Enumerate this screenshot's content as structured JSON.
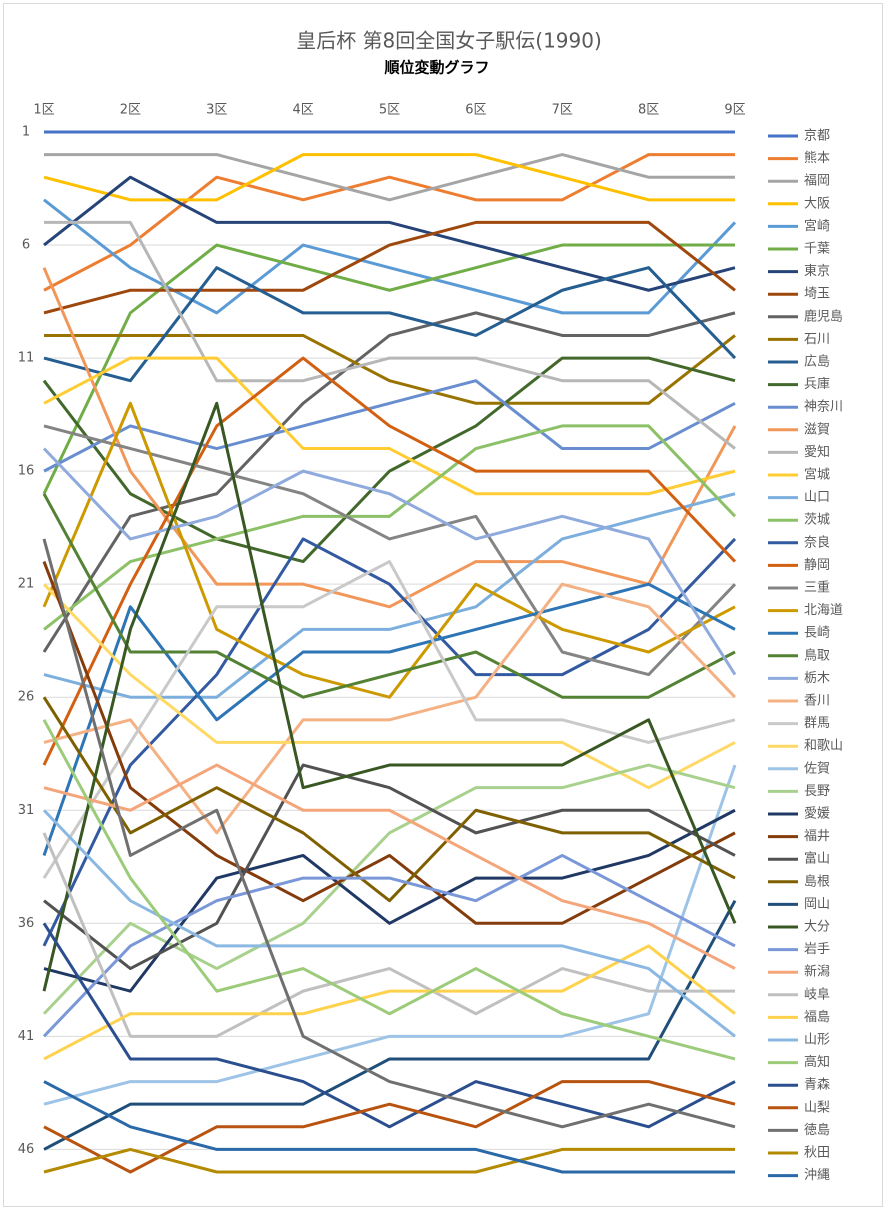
{
  "chart_data": {
    "type": "line",
    "title": "皇后杯 第8回全国女子駅伝(1990)",
    "subtitle": "順位変動グラフ",
    "categories": [
      "1区",
      "2区",
      "3区",
      "4区",
      "5区",
      "6区",
      "7区",
      "8区",
      "9区"
    ],
    "ylim": [
      1,
      47
    ],
    "yticks": [
      1,
      6,
      11,
      16,
      21,
      26,
      31,
      36,
      41,
      46
    ],
    "y_inverted": true,
    "grid": true,
    "legend": "right",
    "series": [
      {
        "name": "京都",
        "color": "#4472C4",
        "values": [
          1,
          1,
          1,
          1,
          1,
          1,
          1,
          1,
          1
        ]
      },
      {
        "name": "熊本",
        "color": "#ED7D31",
        "values": [
          8,
          6,
          3,
          4,
          3,
          4,
          4,
          2,
          2
        ]
      },
      {
        "name": "福岡",
        "color": "#A5A5A5",
        "values": [
          2,
          2,
          2,
          3,
          4,
          3,
          2,
          3,
          3
        ]
      },
      {
        "name": "大阪",
        "color": "#FFC000",
        "values": [
          3,
          4,
          4,
          2,
          2,
          2,
          3,
          4,
          4
        ]
      },
      {
        "name": "宮崎",
        "color": "#5B9BD5",
        "values": [
          4,
          7,
          9,
          6,
          7,
          8,
          9,
          9,
          5
        ]
      },
      {
        "name": "千葉",
        "color": "#70AD47",
        "values": [
          17,
          9,
          6,
          7,
          8,
          7,
          6,
          6,
          6
        ]
      },
      {
        "name": "東京",
        "color": "#264478",
        "values": [
          6,
          3,
          5,
          5,
          5,
          6,
          7,
          8,
          7
        ]
      },
      {
        "name": "埼玉",
        "color": "#9E480E",
        "values": [
          9,
          8,
          8,
          8,
          6,
          5,
          5,
          5,
          8
        ]
      },
      {
        "name": "鹿児島",
        "color": "#636363",
        "values": [
          24,
          18,
          17,
          13,
          10,
          9,
          10,
          10,
          9
        ]
      },
      {
        "name": "石川",
        "color": "#997300",
        "values": [
          10,
          10,
          10,
          10,
          12,
          13,
          13,
          13,
          10
        ]
      },
      {
        "name": "広島",
        "color": "#255E91",
        "values": [
          11,
          12,
          7,
          9,
          9,
          10,
          8,
          7,
          11
        ]
      },
      {
        "name": "兵庫",
        "color": "#43682B",
        "values": [
          12,
          17,
          19,
          20,
          16,
          14,
          11,
          11,
          12
        ]
      },
      {
        "name": "神奈川",
        "color": "#698ED0",
        "values": [
          16,
          14,
          15,
          14,
          13,
          12,
          15,
          15,
          13
        ]
      },
      {
        "name": "滋賀",
        "color": "#F1975A",
        "values": [
          7,
          16,
          21,
          21,
          22,
          20,
          20,
          21,
          14
        ]
      },
      {
        "name": "愛知",
        "color": "#B7B7B7",
        "values": [
          5,
          5,
          12,
          12,
          11,
          11,
          12,
          12,
          15
        ]
      },
      {
        "name": "宮城",
        "color": "#FFCD33",
        "values": [
          13,
          11,
          11,
          15,
          15,
          17,
          17,
          17,
          16
        ]
      },
      {
        "name": "山口",
        "color": "#7CAFDD",
        "values": [
          25,
          26,
          26,
          23,
          23,
          22,
          19,
          18,
          17
        ]
      },
      {
        "name": "茨城",
        "color": "#8CC168",
        "values": [
          23,
          20,
          19,
          18,
          18,
          15,
          14,
          14,
          18
        ]
      },
      {
        "name": "奈良",
        "color": "#335AA1",
        "values": [
          37,
          29,
          25,
          19,
          21,
          25,
          25,
          23,
          19
        ]
      },
      {
        "name": "静岡",
        "color": "#D26012",
        "values": [
          29,
          21,
          14,
          11,
          14,
          16,
          16,
          16,
          20
        ]
      },
      {
        "name": "三重",
        "color": "#848484",
        "values": [
          14,
          15,
          16,
          17,
          19,
          18,
          24,
          25,
          21
        ]
      },
      {
        "name": "北海道",
        "color": "#CC9A00",
        "values": [
          22,
          13,
          23,
          25,
          26,
          21,
          23,
          24,
          22
        ]
      },
      {
        "name": "長崎",
        "color": "#2E75B6",
        "values": [
          33,
          22,
          27,
          24,
          24,
          23,
          22,
          21,
          23
        ]
      },
      {
        "name": "鳥取",
        "color": "#548235",
        "values": [
          17,
          24,
          24,
          26,
          25,
          24,
          26,
          26,
          24
        ]
      },
      {
        "name": "栃木",
        "color": "#8FAADC",
        "values": [
          15,
          19,
          18,
          16,
          17,
          19,
          18,
          19,
          25
        ]
      },
      {
        "name": "香川",
        "color": "#F4B183",
        "values": [
          28,
          27,
          32,
          27,
          27,
          26,
          21,
          22,
          26
        ]
      },
      {
        "name": "群馬",
        "color": "#C9C9C9",
        "values": [
          34,
          28,
          22,
          22,
          20,
          27,
          27,
          28,
          27
        ]
      },
      {
        "name": "和歌山",
        "color": "#FFD966",
        "values": [
          21,
          25,
          28,
          28,
          28,
          28,
          28,
          30,
          28
        ]
      },
      {
        "name": "佐賀",
        "color": "#9DC3E6",
        "values": [
          44,
          43,
          43,
          42,
          41,
          41,
          41,
          40,
          29
        ]
      },
      {
        "name": "長野",
        "color": "#A9D18E",
        "values": [
          40,
          36,
          38,
          36,
          32,
          30,
          30,
          29,
          30
        ]
      },
      {
        "name": "愛媛",
        "color": "#203864",
        "values": [
          38,
          39,
          34,
          33,
          36,
          34,
          34,
          33,
          31
        ]
      },
      {
        "name": "福井",
        "color": "#843C0C",
        "values": [
          20,
          30,
          33,
          35,
          33,
          36,
          36,
          34,
          32
        ]
      },
      {
        "name": "富山",
        "color": "#525252",
        "values": [
          35,
          38,
          36,
          29,
          30,
          32,
          31,
          31,
          33
        ]
      },
      {
        "name": "島根",
        "color": "#7F6000",
        "values": [
          26,
          32,
          30,
          32,
          35,
          31,
          32,
          32,
          34
        ]
      },
      {
        "name": "岡山",
        "color": "#1F4E79",
        "values": [
          46,
          44,
          44,
          44,
          42,
          42,
          42,
          42,
          35
        ]
      },
      {
        "name": "大分",
        "color": "#385723",
        "values": [
          39,
          23,
          13,
          30,
          29,
          29,
          29,
          27,
          36
        ]
      },
      {
        "name": "岩手",
        "color": "#7A97D8",
        "values": [
          41,
          37,
          35,
          34,
          34,
          35,
          33,
          35,
          37
        ]
      },
      {
        "name": "新潟",
        "color": "#F4A57A",
        "values": [
          30,
          31,
          29,
          31,
          31,
          33,
          35,
          36,
          38
        ]
      },
      {
        "name": "岐阜",
        "color": "#C0C0C0",
        "values": [
          32,
          41,
          41,
          39,
          38,
          40,
          38,
          39,
          39
        ]
      },
      {
        "name": "福島",
        "color": "#FFD24D",
        "values": [
          42,
          40,
          40,
          40,
          39,
          39,
          39,
          37,
          40
        ]
      },
      {
        "name": "山形",
        "color": "#8BB8E2",
        "values": [
          31,
          35,
          37,
          37,
          37,
          37,
          37,
          38,
          41
        ]
      },
      {
        "name": "高知",
        "color": "#9CCB7A",
        "values": [
          27,
          34,
          39,
          38,
          40,
          38,
          40,
          41,
          42
        ]
      },
      {
        "name": "青森",
        "color": "#2B4E8E",
        "values": [
          36,
          42,
          42,
          43,
          45,
          43,
          44,
          45,
          43
        ]
      },
      {
        "name": "山梨",
        "color": "#B85410",
        "values": [
          45,
          47,
          45,
          45,
          44,
          45,
          43,
          43,
          44
        ]
      },
      {
        "name": "徳島",
        "color": "#707070",
        "values": [
          19,
          33,
          31,
          41,
          43,
          44,
          45,
          44,
          45
        ]
      },
      {
        "name": "秋田",
        "color": "#B38A00",
        "values": [
          47,
          46,
          47,
          47,
          47,
          47,
          46,
          46,
          46
        ]
      },
      {
        "name": "沖縄",
        "color": "#2A68A8",
        "values": [
          43,
          45,
          46,
          46,
          46,
          46,
          47,
          47,
          47
        ]
      }
    ]
  }
}
